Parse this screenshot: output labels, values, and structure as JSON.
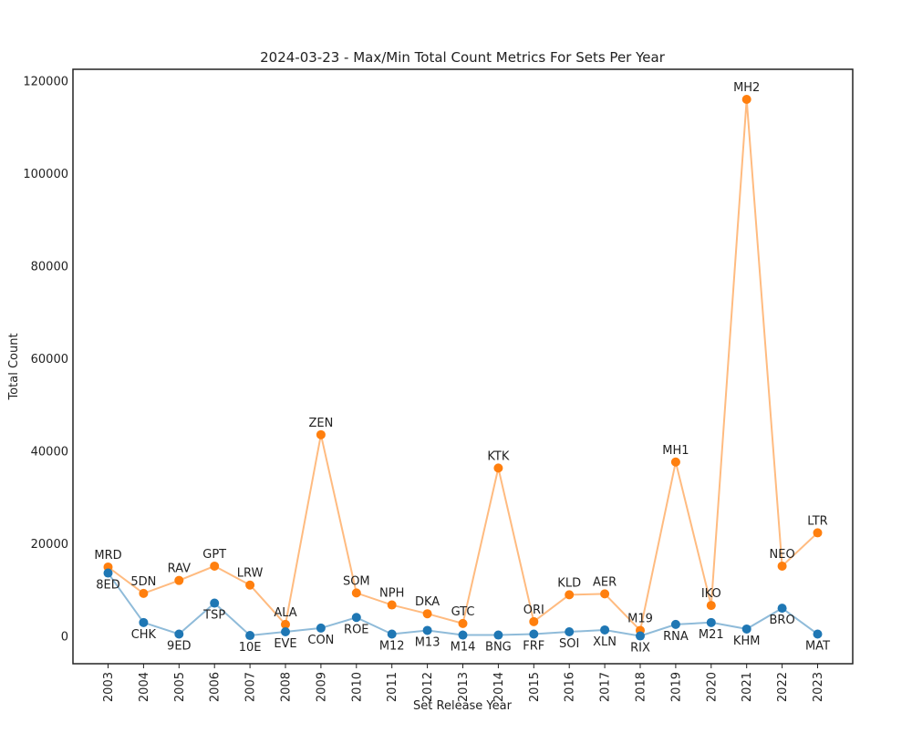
{
  "chart_data": {
    "type": "line",
    "title": "2024-03-23 - Max/Min Total Count Metrics For Sets Per Year",
    "xlabel": "Set Release Year",
    "ylabel": "Total Count",
    "categories": [
      "2003",
      "2004",
      "2005",
      "2006",
      "2007",
      "2008",
      "2009",
      "2010",
      "2011",
      "2012",
      "2013",
      "2014",
      "2015",
      "2016",
      "2017",
      "2018",
      "2019",
      "2020",
      "2021",
      "2022",
      "2023"
    ],
    "y_ticks": [
      0,
      20000,
      40000,
      60000,
      80000,
      100000,
      120000
    ],
    "ylim": [
      -6000,
      122500
    ],
    "grid": false,
    "series": [
      {
        "role": "max",
        "color": "#ff7f0e",
        "line_color": "#ffbb80",
        "values": [
          14900,
          9200,
          12000,
          15100,
          11000,
          2500,
          43500,
          9300,
          6700,
          4800,
          2700,
          36300,
          3100,
          8900,
          9100,
          1200,
          37600,
          6600,
          116000,
          15100,
          22300
        ],
        "labels": [
          "MRD",
          "5DN",
          "RAV",
          "GPT",
          "LRW",
          "ALA",
          "ZEN",
          "SOM",
          "NPH",
          "DKA",
          "GTC",
          "KTK",
          "ORI",
          "KLD",
          "AER",
          "M19",
          "MH1",
          "IKO",
          "MH2",
          "NEO",
          "LTR"
        ]
      },
      {
        "role": "min",
        "color": "#1f77b4",
        "line_color": "#8fbbd9",
        "values": [
          13600,
          2900,
          400,
          7100,
          100,
          900,
          1700,
          4000,
          400,
          1200,
          200,
          200,
          400,
          900,
          1300,
          0,
          2500,
          2900,
          1500,
          6000,
          400
        ],
        "labels": [
          "8ED",
          "CHK",
          "9ED",
          "TSP",
          "10E",
          "EVE",
          "CON",
          "ROE",
          "M12",
          "M13",
          "M14",
          "BNG",
          "FRF",
          "SOI",
          "XLN",
          "RIX",
          "RNA",
          "M21",
          "KHM",
          "BRO",
          "MAT"
        ]
      }
    ]
  }
}
